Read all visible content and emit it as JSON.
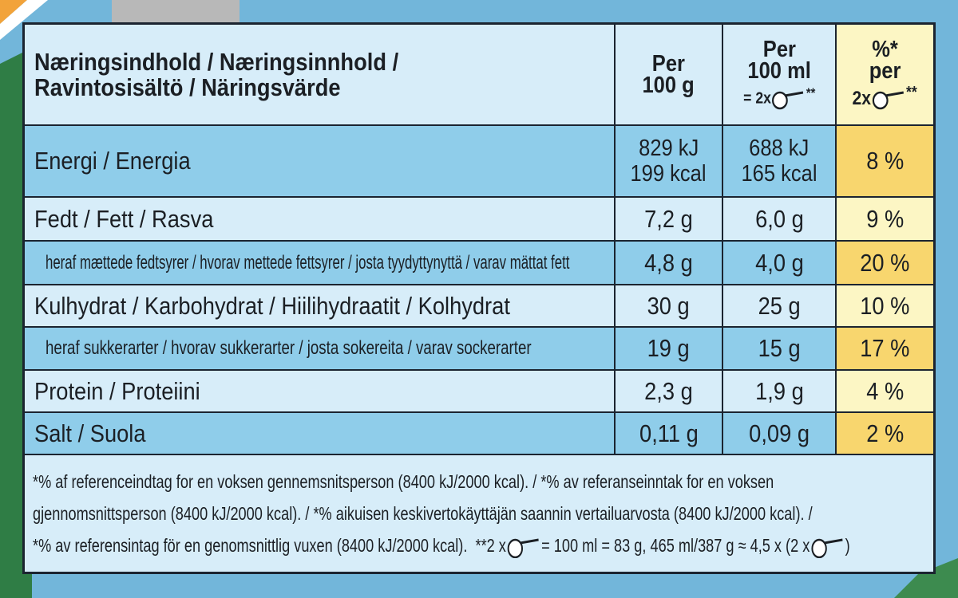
{
  "header": {
    "title_line1": "Næringsindhold / Næringsinnhold /",
    "title_line2": "Ravintosisältö / Näringsvärde",
    "col1": [
      "Per",
      "100 g"
    ],
    "col2": [
      "Per",
      "100 ml",
      "= 2x",
      "**"
    ],
    "col3": [
      "%*",
      "per",
      "2x",
      "**"
    ]
  },
  "rows": [
    {
      "label": "Energi / Energia",
      "per100g": [
        "829 kJ",
        "199 kcal"
      ],
      "per100ml": [
        "688 kJ",
        "165 kcal"
      ],
      "percent": "8 %"
    },
    {
      "label": "Fedt / Fett / Rasva",
      "per100g": "7,2 g",
      "per100ml": "6,0 g",
      "percent": "9 %"
    },
    {
      "label": "heraf mættede fedtsyrer / hvorav mettede fettsyrer / josta tyydyttynyttä / varav mättat fett",
      "per100g": "4,8 g",
      "per100ml": "4,0 g",
      "percent": "20 %"
    },
    {
      "label": "Kulhydrat / Karbohydrat / Hiilihydraatit / Kolhydrat",
      "per100g": "30 g",
      "per100ml": "25 g",
      "percent": "10 %"
    },
    {
      "label": "heraf sukkerarter / hvorav sukkerarter / josta sokereita / varav sockerarter",
      "per100g": "19 g",
      "per100ml": "15 g",
      "percent": "17 %"
    },
    {
      "label": "Protein / Proteiini",
      "per100g": "2,3 g",
      "per100ml": "1,9 g",
      "percent": "4 %"
    },
    {
      "label": "Salt / Suola",
      "per100g": "0,11 g",
      "per100ml": "0,09 g",
      "percent": "2 %"
    }
  ],
  "footer": {
    "line1": "*% af referenceindtag for en voksen gennemsnitsperson (8400 kJ/2000 kcal). / *% av referanseinntak for en voksen",
    "line2": "gjennomsnittsperson (8400 kJ/2000 kcal). / *% aikuisen keskivertokäyttäjän saannin vertailuarvosta (8400 kJ/2000 kcal). /",
    "line3_a": "*% av referensintag för en genomsnittlig vuxen (8400 kJ/2000 kcal).",
    "line3_b": "**2 x",
    "line3_c": "= 100 ml = 83 g, 465 ml/387 g ≈ 4,5 x (2 x",
    "line3_d": ")"
  }
}
